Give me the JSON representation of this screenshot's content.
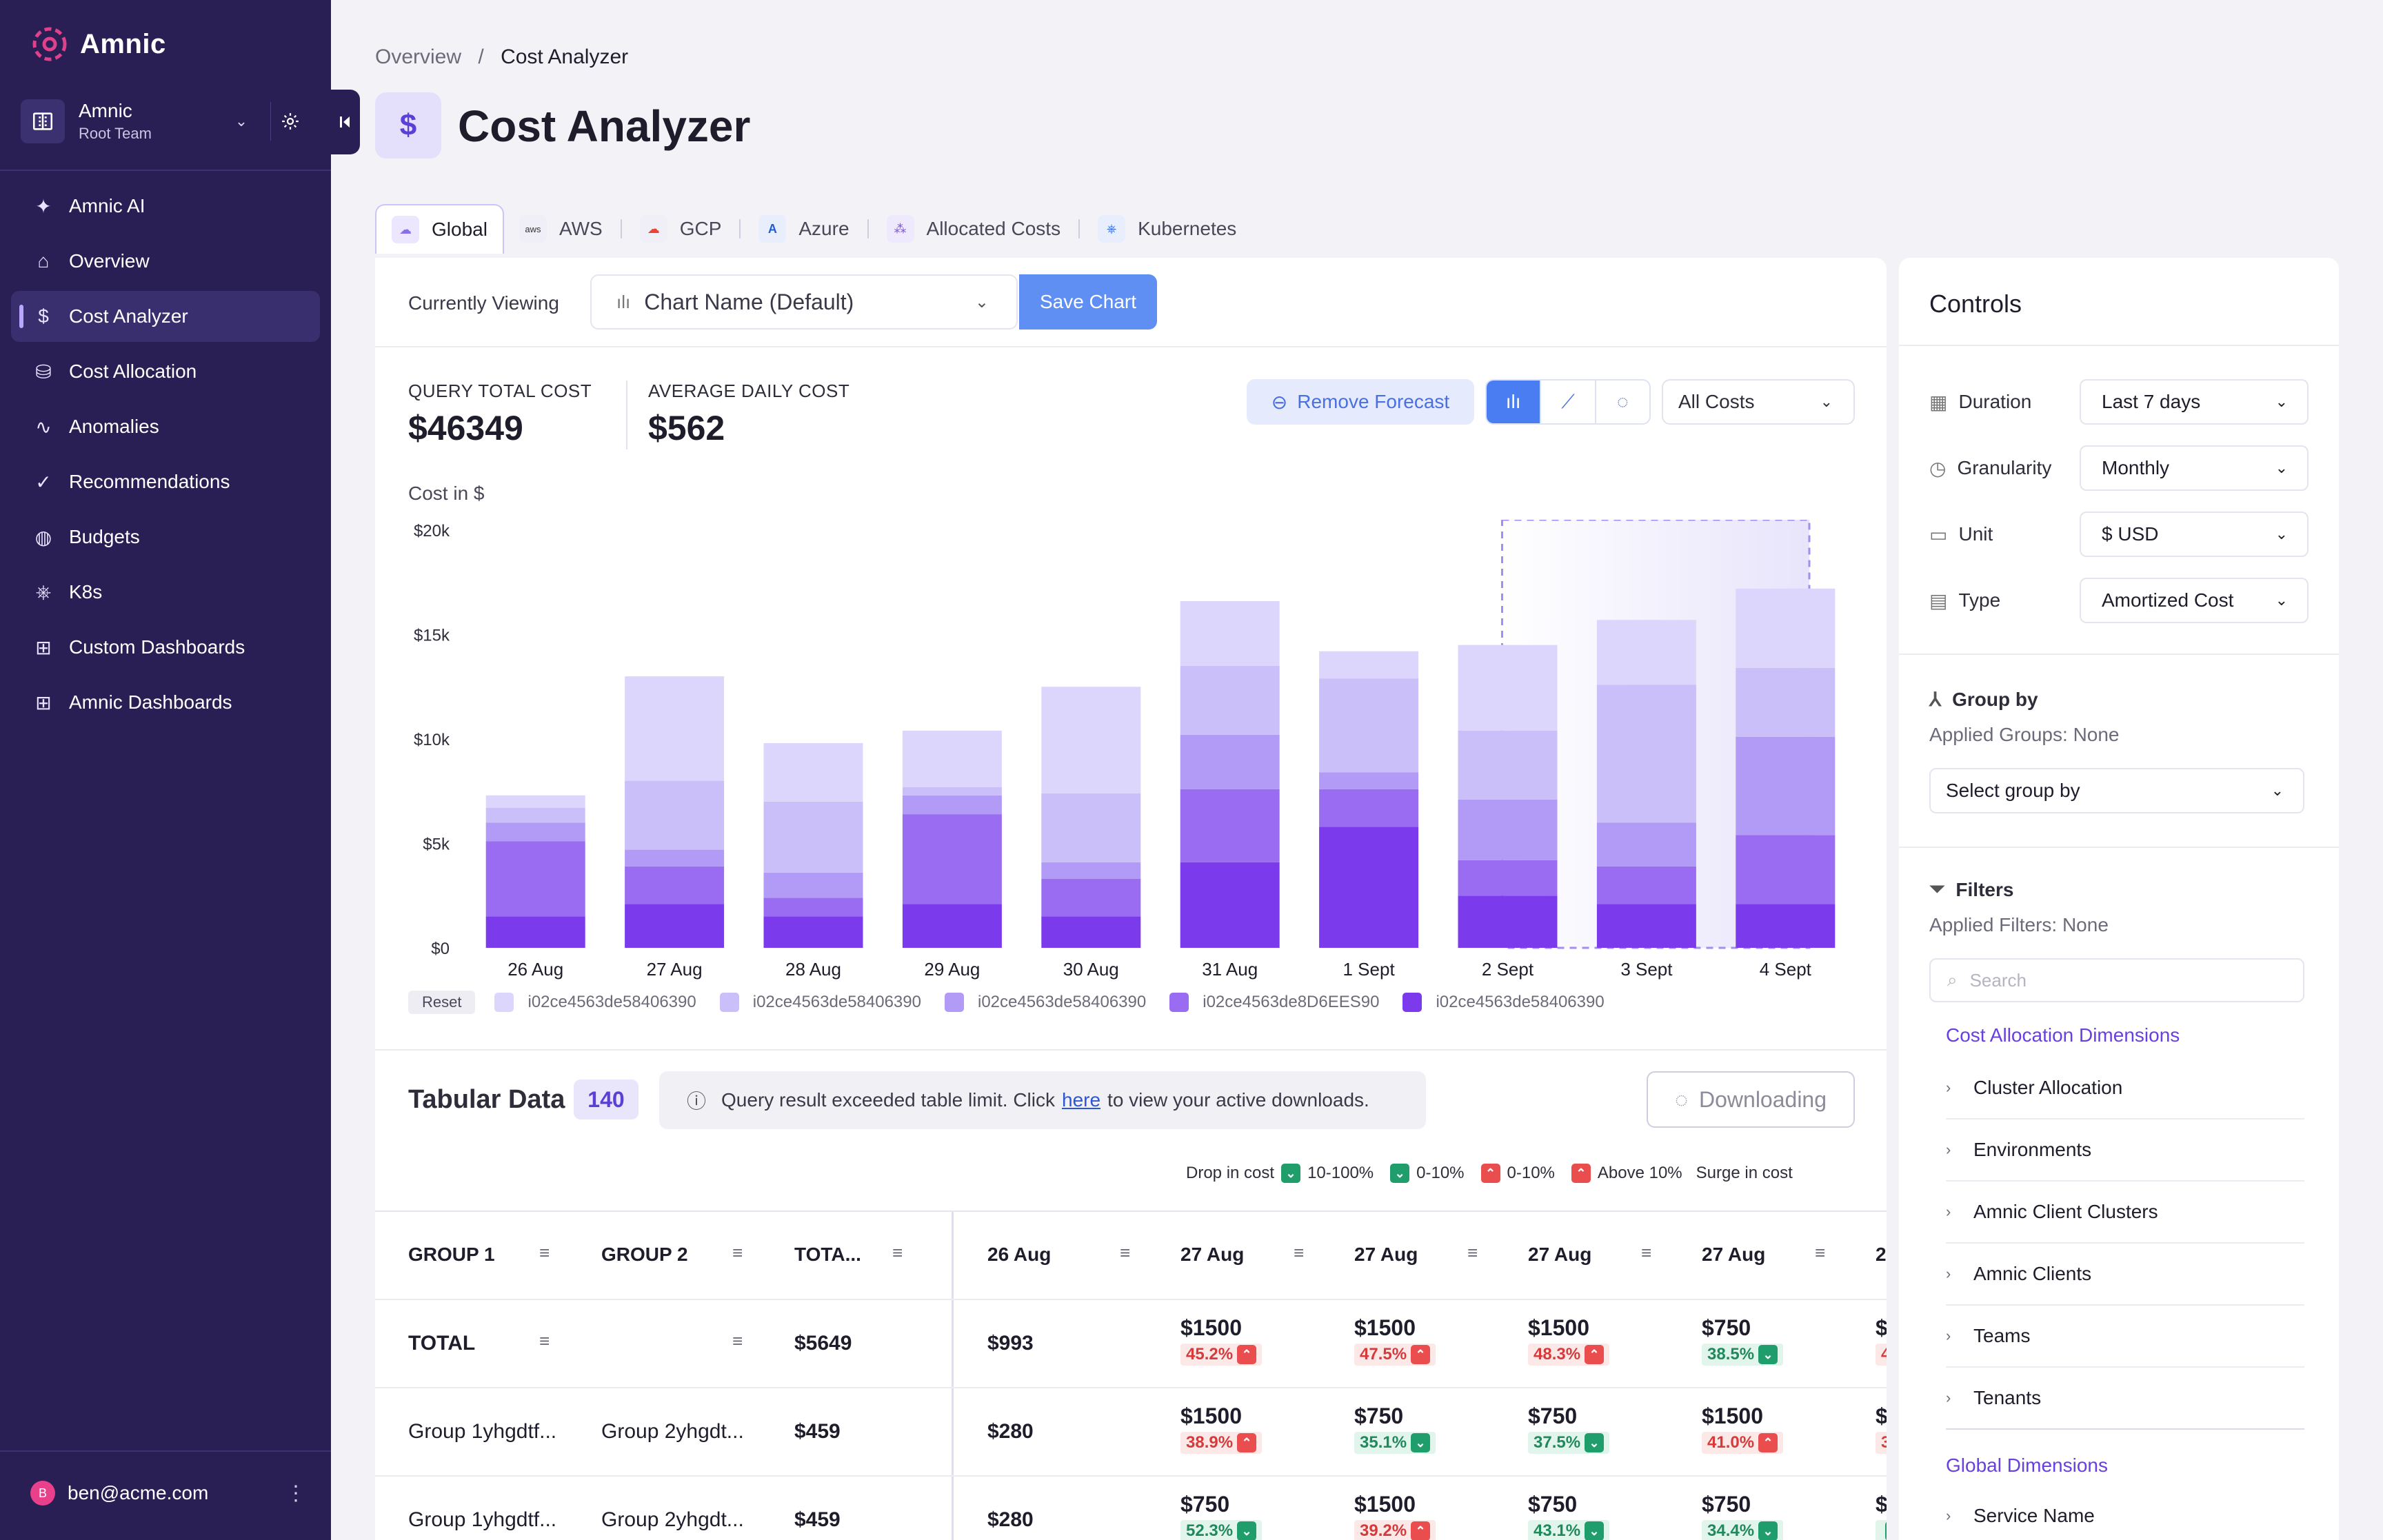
{
  "sidebar": {
    "brand": "Amnic",
    "team_name": "Amnic",
    "team_sub": "Root Team",
    "items": [
      {
        "label": "Amnic AI",
        "icon": "sparkle-icon"
      },
      {
        "label": "Overview",
        "icon": "home-icon"
      },
      {
        "label": "Cost Analyzer",
        "icon": "dollar-icon",
        "active": true
      },
      {
        "label": "Cost Allocation",
        "icon": "coins-icon"
      },
      {
        "label": "Anomalies",
        "icon": "activity-icon"
      },
      {
        "label": "Recommendations",
        "icon": "checklist-icon"
      },
      {
        "label": "Budgets",
        "icon": "piggy-bank-icon"
      },
      {
        "label": "K8s",
        "icon": "helm-icon"
      },
      {
        "label": "Custom Dashboards",
        "icon": "dashboard-add-icon"
      },
      {
        "label": "Amnic Dashboards",
        "icon": "dashboard-icon"
      }
    ],
    "user_initial": "B",
    "user_email": "ben@acme.com"
  },
  "header": {
    "breadcrumb_root": "Overview",
    "breadcrumb_sep": "/",
    "breadcrumb_current": "Cost Analyzer",
    "title_icon": "$",
    "title": "Cost Analyzer"
  },
  "tabs": [
    {
      "label": "Global",
      "active": true
    },
    {
      "label": "AWS"
    },
    {
      "label": "GCP"
    },
    {
      "label": "Azure"
    },
    {
      "label": "Allocated Costs"
    },
    {
      "label": "Kubernetes"
    }
  ],
  "viewbar": {
    "currently_viewing": "Currently Viewing",
    "chart_name": "Chart Name (Default)",
    "save_label": "Save Chart"
  },
  "metrics": {
    "query_label": "QUERY TOTAL COST",
    "query_value": "$46349",
    "avg_label": "AVERAGE DAILY COST",
    "avg_value": "$562"
  },
  "toolbar": {
    "remove_forecast": "Remove Forecast",
    "cost_filter": "All Costs"
  },
  "chart_label": "Cost in $",
  "chart_data": {
    "type": "bar",
    "stacked": true,
    "categories": [
      "26 Aug",
      "27 Aug",
      "28 Aug",
      "29 Aug",
      "30 Aug",
      "31 Aug",
      "1 Sept",
      "2 Sept",
      "3 Sept",
      "4 Sept"
    ],
    "y_ticks": [
      "$0",
      "$5k",
      "$10k",
      "$15k",
      "$20k"
    ],
    "ylim": [
      0,
      20000
    ],
    "forecast_from": "2 Sept",
    "series": [
      {
        "name": "i02ce4563de58406390",
        "color": "#7c3aed",
        "values": [
          1500,
          2100,
          1500,
          2100,
          1500,
          4100,
          5800,
          2500,
          2100,
          2100
        ]
      },
      {
        "name": "i02ce4563de8D6EES90",
        "color": "#9a6cf2",
        "values": [
          3600,
          1800,
          900,
          4300,
          1800,
          3500,
          1800,
          1700,
          1800,
          3300
        ]
      },
      {
        "name": "i02ce4563de58406390",
        "color": "#b29bf6",
        "values": [
          900,
          800,
          1200,
          900,
          800,
          2600,
          800,
          2900,
          2100,
          4700
        ]
      },
      {
        "name": "i02ce4563de58406390",
        "color": "#cbbff9",
        "values": [
          700,
          3300,
          3400,
          400,
          3300,
          3300,
          4500,
          3300,
          6600,
          3300
        ]
      },
      {
        "name": "i02ce4563de58406390",
        "color": "#ddd6fc",
        "values": [
          600,
          5000,
          2800,
          2700,
          5100,
          3100,
          1300,
          4100,
          3100,
          3800
        ]
      }
    ],
    "legend": [
      "i02ce4563de58406390",
      "i02ce4563de58406390",
      "i02ce4563de58406390",
      "i02ce4563de8D6EES90",
      "i02ce4563de58406390"
    ],
    "legend_colors": [
      "#ddd6fc",
      "#cbbff9",
      "#b29bf6",
      "#9a6cf2",
      "#7c3aed"
    ]
  },
  "legend_reset": "Reset",
  "tabular": {
    "title": "Tabular Data",
    "count": "140",
    "notice_before": "Query result exceeded table limit. Click",
    "notice_link": "here",
    "notice_after": "to view your active downloads.",
    "download_label": "Downloading",
    "scale": {
      "drop": "Drop in cost",
      "b1": "10-100%",
      "b2": "0-10%",
      "b3": "0-10%",
      "b4": "Above 10%",
      "surge": "Surge in cost"
    },
    "headers": [
      "GROUP 1",
      "GROUP 2",
      "TOTA...",
      "26 Aug",
      "27 Aug",
      "27 Aug",
      "27 Aug",
      "27 Aug",
      "2"
    ],
    "rows": [
      {
        "g1": "TOTAL",
        "g2": "",
        "total": "$5649",
        "d0": "$993",
        "cells": [
          {
            "v": "$1500",
            "p": "45.2%",
            "dir": "up"
          },
          {
            "v": "$1500",
            "p": "47.5%",
            "dir": "up"
          },
          {
            "v": "$1500",
            "p": "48.3%",
            "dir": "up"
          },
          {
            "v": "$750",
            "p": "38.5%",
            "dir": "down"
          },
          {
            "v": "$",
            "p": "4",
            "dir": "up"
          }
        ]
      },
      {
        "g1": "Group 1yhgdtf...",
        "g2": "Group 2yhgdt...",
        "total": "$459",
        "d0": "$280",
        "cells": [
          {
            "v": "$1500",
            "p": "38.9%",
            "dir": "up"
          },
          {
            "v": "$750",
            "p": "35.1%",
            "dir": "down"
          },
          {
            "v": "$750",
            "p": "37.5%",
            "dir": "down"
          },
          {
            "v": "$1500",
            "p": "41.0%",
            "dir": "up"
          },
          {
            "v": "$",
            "p": "3",
            "dir": "up"
          }
        ]
      },
      {
        "g1": "Group 1yhgdtf...",
        "g2": "Group 2yhgdt...",
        "total": "$459",
        "d0": "$280",
        "cells": [
          {
            "v": "$750",
            "p": "52.3%",
            "dir": "down"
          },
          {
            "v": "$1500",
            "p": "39.2%",
            "dir": "up"
          },
          {
            "v": "$750",
            "p": "43.1%",
            "dir": "down"
          },
          {
            "v": "$750",
            "p": "34.4%",
            "dir": "down"
          },
          {
            "v": "$",
            "p": "",
            "dir": "down"
          }
        ]
      }
    ]
  },
  "controls": {
    "title": "Controls",
    "duration_label": "Duration",
    "duration": "Last 7 days",
    "granularity_label": "Granularity",
    "granularity": "Monthly",
    "unit_label": "Unit",
    "unit": "$ USD",
    "type_label": "Type",
    "type": "Amortized Cost",
    "group_by": "Group by",
    "applied_groups": "Applied Groups: None",
    "select_group": "Select group by",
    "filters": "Filters",
    "applied_filters": "Applied Filters: None",
    "search_placeholder": "Search",
    "cost_alloc_dims": "Cost Allocation Dimensions",
    "dims": [
      "Cluster Allocation",
      "Environments",
      "Amnic Client Clusters",
      "Amnic Clients",
      "Teams",
      "Tenants"
    ],
    "global_dims": "Global Dimensions",
    "global_items": [
      "Service Name"
    ]
  }
}
